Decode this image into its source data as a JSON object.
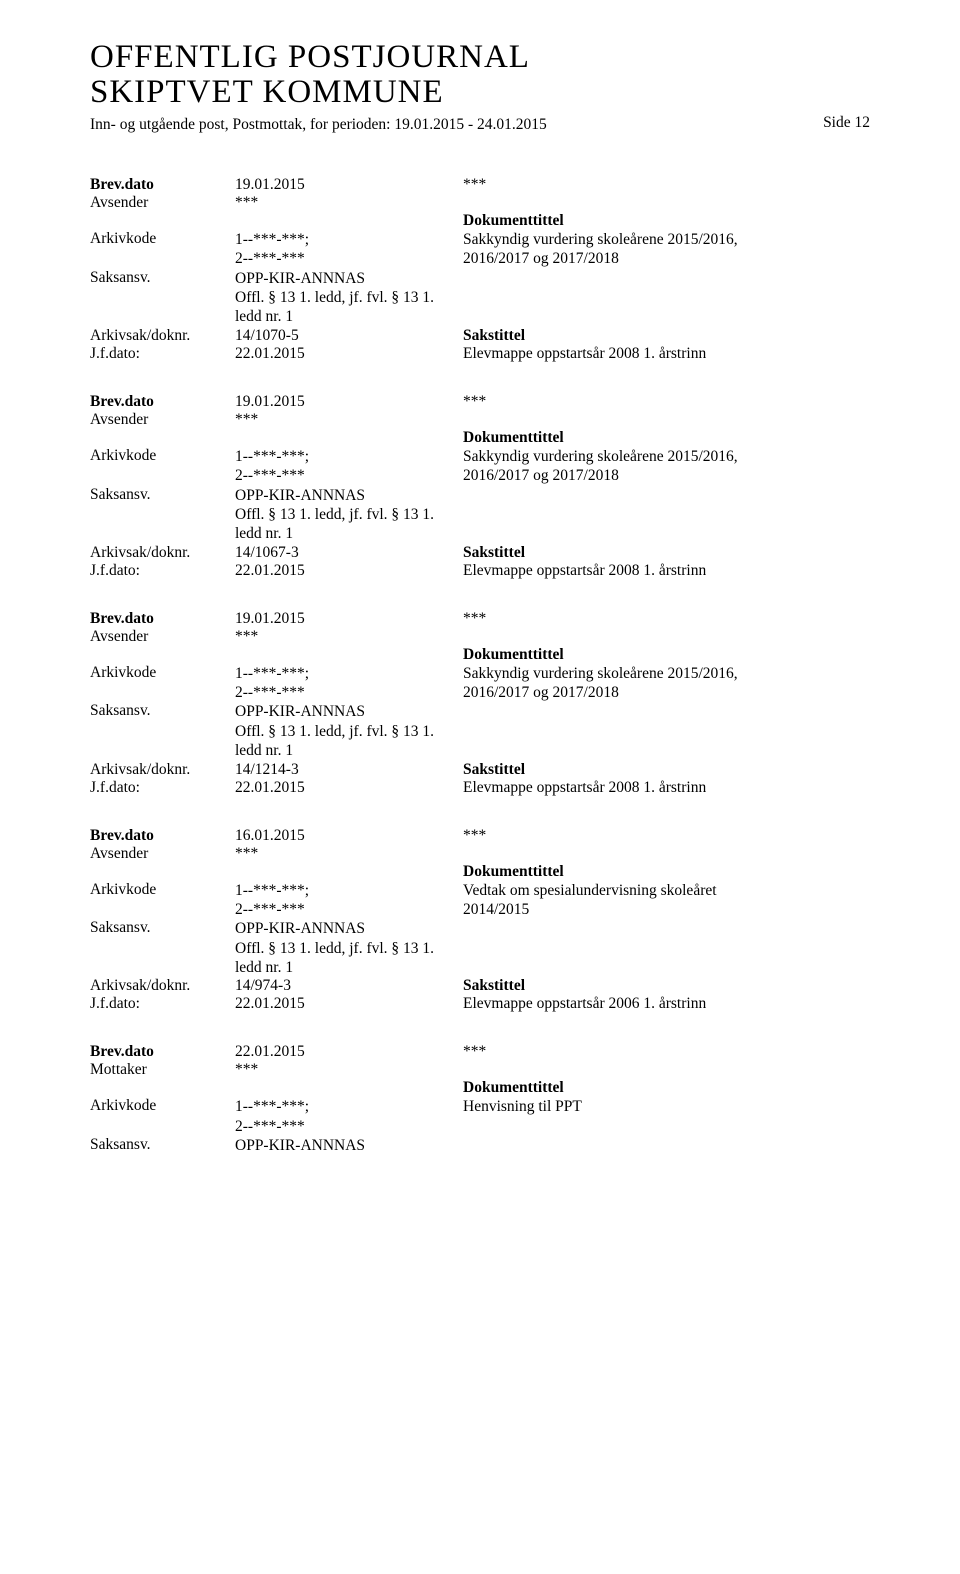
{
  "header": {
    "title_line1": "OFFENTLIG POSTJOURNAL",
    "title_line2": "SKIPTVET KOMMUNE",
    "subtitle": "Inn- og utgående post, Postmottak, for perioden: 19.01.2015 - 24.01.2015",
    "page_label": "Side 12"
  },
  "labels": {
    "brevdato": "Brev.dato",
    "avsender": "Avsender",
    "mottaker": "Mottaker",
    "arkivkode": "Arkivkode",
    "saksansv": "Saksansv.",
    "arkivsak": "Arkivsak/doknr.",
    "jfdato": "J.f.dato:",
    "doktittel": "Dokumenttittel",
    "sakstittel": "Sakstittel"
  },
  "entries": [
    {
      "brevdato": "19.01.2015",
      "brevdato_right": "***",
      "sender_label": "Avsender",
      "sender_val": "***",
      "arkivkode": "1--***-***;\n2--***-***",
      "doktittel": "Sakkyndig vurdering skoleårene 2015/2016,\n2016/2017 og 2017/2018",
      "saksansv": "OPP-KIR-ANNNAS\nOffl. § 13 1. ledd, jf. fvl. § 13 1.\nledd nr. 1",
      "arkivsak": "14/1070-5",
      "jfdato": "22.01.2015",
      "jfright": "Elevmappe oppstartsår 2008 1. årstrinn"
    },
    {
      "brevdato": "19.01.2015",
      "brevdato_right": "***",
      "sender_label": "Avsender",
      "sender_val": "***",
      "arkivkode": "1--***-***;\n2--***-***",
      "doktittel": "Sakkyndig vurdering skoleårene 2015/2016,\n2016/2017 og 2017/2018",
      "saksansv": "OPP-KIR-ANNNAS\nOffl. § 13 1. ledd, jf. fvl. § 13 1.\nledd nr. 1",
      "arkivsak": "14/1067-3",
      "jfdato": "22.01.2015",
      "jfright": "Elevmappe oppstartsår 2008 1. årstrinn"
    },
    {
      "brevdato": "19.01.2015",
      "brevdato_right": "***",
      "sender_label": "Avsender",
      "sender_val": "***",
      "arkivkode": "1--***-***;\n2--***-***",
      "doktittel": "Sakkyndig vurdering skoleårene 2015/2016,\n2016/2017 og 2017/2018",
      "saksansv": "OPP-KIR-ANNNAS\nOffl. § 13 1. ledd, jf. fvl. § 13 1.\nledd nr. 1",
      "arkivsak": "14/1214-3",
      "jfdato": "22.01.2015",
      "jfright": "Elevmappe oppstartsår 2008 1. årstrinn"
    },
    {
      "brevdato": "16.01.2015",
      "brevdato_right": "***",
      "sender_label": "Avsender",
      "sender_val": "***",
      "arkivkode": "1--***-***;\n2--***-***",
      "doktittel": "Vedtak om spesialundervisning skoleåret\n2014/2015",
      "saksansv": "OPP-KIR-ANNNAS\nOffl. § 13 1. ledd, jf. fvl. § 13 1.\nledd nr. 1",
      "arkivsak": "14/974-3",
      "jfdato": "22.01.2015",
      "jfright": "Elevmappe oppstartsår 2006 1. årstrinn"
    },
    {
      "brevdato": "22.01.2015",
      "brevdato_right": "***",
      "sender_label": "Mottaker",
      "sender_val": "***",
      "arkivkode": "1--***-***;\n2--***-***",
      "doktittel": "Henvisning til PPT",
      "saksansv": "OPP-KIR-ANNNAS",
      "arkivsak": null,
      "jfdato": null,
      "jfright": null
    }
  ]
}
